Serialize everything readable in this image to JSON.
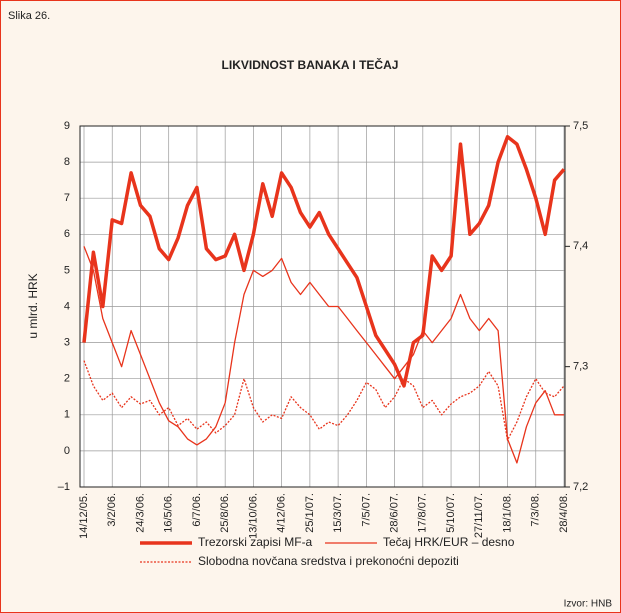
{
  "chart_data": {
    "type": "line",
    "figure_label": "Slika 26.",
    "title": "LIKVIDNOST BANAKA I TEČAJ",
    "y_label": "u mlrd. HRK",
    "source": "Izvor: HNB",
    "categories": [
      "14/12/05.",
      null,
      null,
      "3/2/06.",
      null,
      null,
      "24/3/06.",
      null,
      null,
      "16/5/06.",
      null,
      null,
      "6/7/06.",
      null,
      null,
      "25/8/06.",
      null,
      null,
      "13/10/06.",
      null,
      null,
      "4/12/06.",
      null,
      null,
      "25/1/07.",
      null,
      null,
      "15/3/07.",
      null,
      null,
      "7/5/07.",
      null,
      null,
      "28/6/07.",
      null,
      null,
      "17/8/07.",
      null,
      null,
      "5/10/07.",
      null,
      null,
      "27/11/07.",
      null,
      null,
      "18/1/08.",
      null,
      null,
      "7/3/08.",
      null,
      null,
      "28/4/08."
    ],
    "series": [
      {
        "name": "Trezorski zapisi MF-a",
        "color": "#e8341c",
        "width": 3.5,
        "dash": "solid",
        "axis": "y",
        "values": [
          3.0,
          5.5,
          4.0,
          6.4,
          6.3,
          7.7,
          6.8,
          6.5,
          5.6,
          5.3,
          5.9,
          6.8,
          7.3,
          5.6,
          5.3,
          5.4,
          6.0,
          5.0,
          6.0,
          7.4,
          6.5,
          7.7,
          7.3,
          6.6,
          6.2,
          6.6,
          6.0,
          5.6,
          5.2,
          4.8,
          4.0,
          3.2,
          2.8,
          2.4,
          1.8,
          3.0,
          3.2,
          5.4,
          5.0,
          5.4,
          8.5,
          6.0,
          6.3,
          6.8,
          8.0,
          8.7,
          8.5,
          7.8,
          7.0,
          6.0,
          7.5,
          7.8
        ]
      },
      {
        "name": "Tečaj HRK/EUR – desno",
        "color": "#e8341c",
        "width": 1.3,
        "dash": "solid",
        "axis": "y2",
        "values": [
          7.4,
          7.38,
          7.34,
          7.32,
          7.3,
          7.33,
          7.31,
          7.29,
          7.27,
          7.255,
          7.25,
          7.24,
          7.235,
          7.24,
          7.25,
          7.27,
          7.32,
          7.36,
          7.38,
          7.375,
          7.38,
          7.39,
          7.37,
          7.36,
          7.37,
          7.36,
          7.35,
          7.35,
          7.34,
          7.33,
          7.32,
          7.31,
          7.3,
          7.29,
          7.3,
          7.31,
          7.33,
          7.32,
          7.33,
          7.34,
          7.36,
          7.34,
          7.33,
          7.34,
          7.33,
          7.24,
          7.22,
          7.25,
          7.27,
          7.28,
          7.26,
          7.26
        ]
      },
      {
        "name": "Slobodna novčana sredstva i prekonoćni depoziti",
        "color": "#e8341c",
        "width": 1.3,
        "dash": "dotted",
        "axis": "y",
        "values": [
          2.5,
          1.8,
          1.4,
          1.6,
          1.2,
          1.5,
          1.3,
          1.4,
          1.0,
          1.2,
          0.7,
          0.9,
          0.6,
          0.8,
          0.5,
          0.7,
          1.0,
          2.0,
          1.2,
          0.8,
          1.0,
          0.9,
          1.5,
          1.2,
          1.0,
          0.6,
          0.8,
          0.7,
          1.0,
          1.4,
          1.9,
          1.7,
          1.2,
          1.5,
          2.0,
          1.8,
          1.2,
          1.4,
          1.0,
          1.3,
          1.5,
          1.6,
          1.8,
          2.2,
          1.8,
          0.3,
          0.8,
          1.5,
          2.0,
          1.6,
          1.5,
          1.8
        ]
      }
    ],
    "ylim": [
      -1,
      9
    ],
    "yticks": [
      {
        "value": -1,
        "label": "–1"
      },
      0,
      1,
      2,
      3,
      4,
      5,
      6,
      7,
      8,
      9
    ],
    "y2lim": [
      7.2,
      7.5
    ],
    "y2ticks": [
      {
        "value": 7.2,
        "label": "7,2"
      },
      {
        "value": 7.3,
        "label": "7,3"
      },
      {
        "value": 7.4,
        "label": "7,4"
      },
      {
        "value": 7.5,
        "label": "7,5"
      }
    ],
    "grid": true
  }
}
